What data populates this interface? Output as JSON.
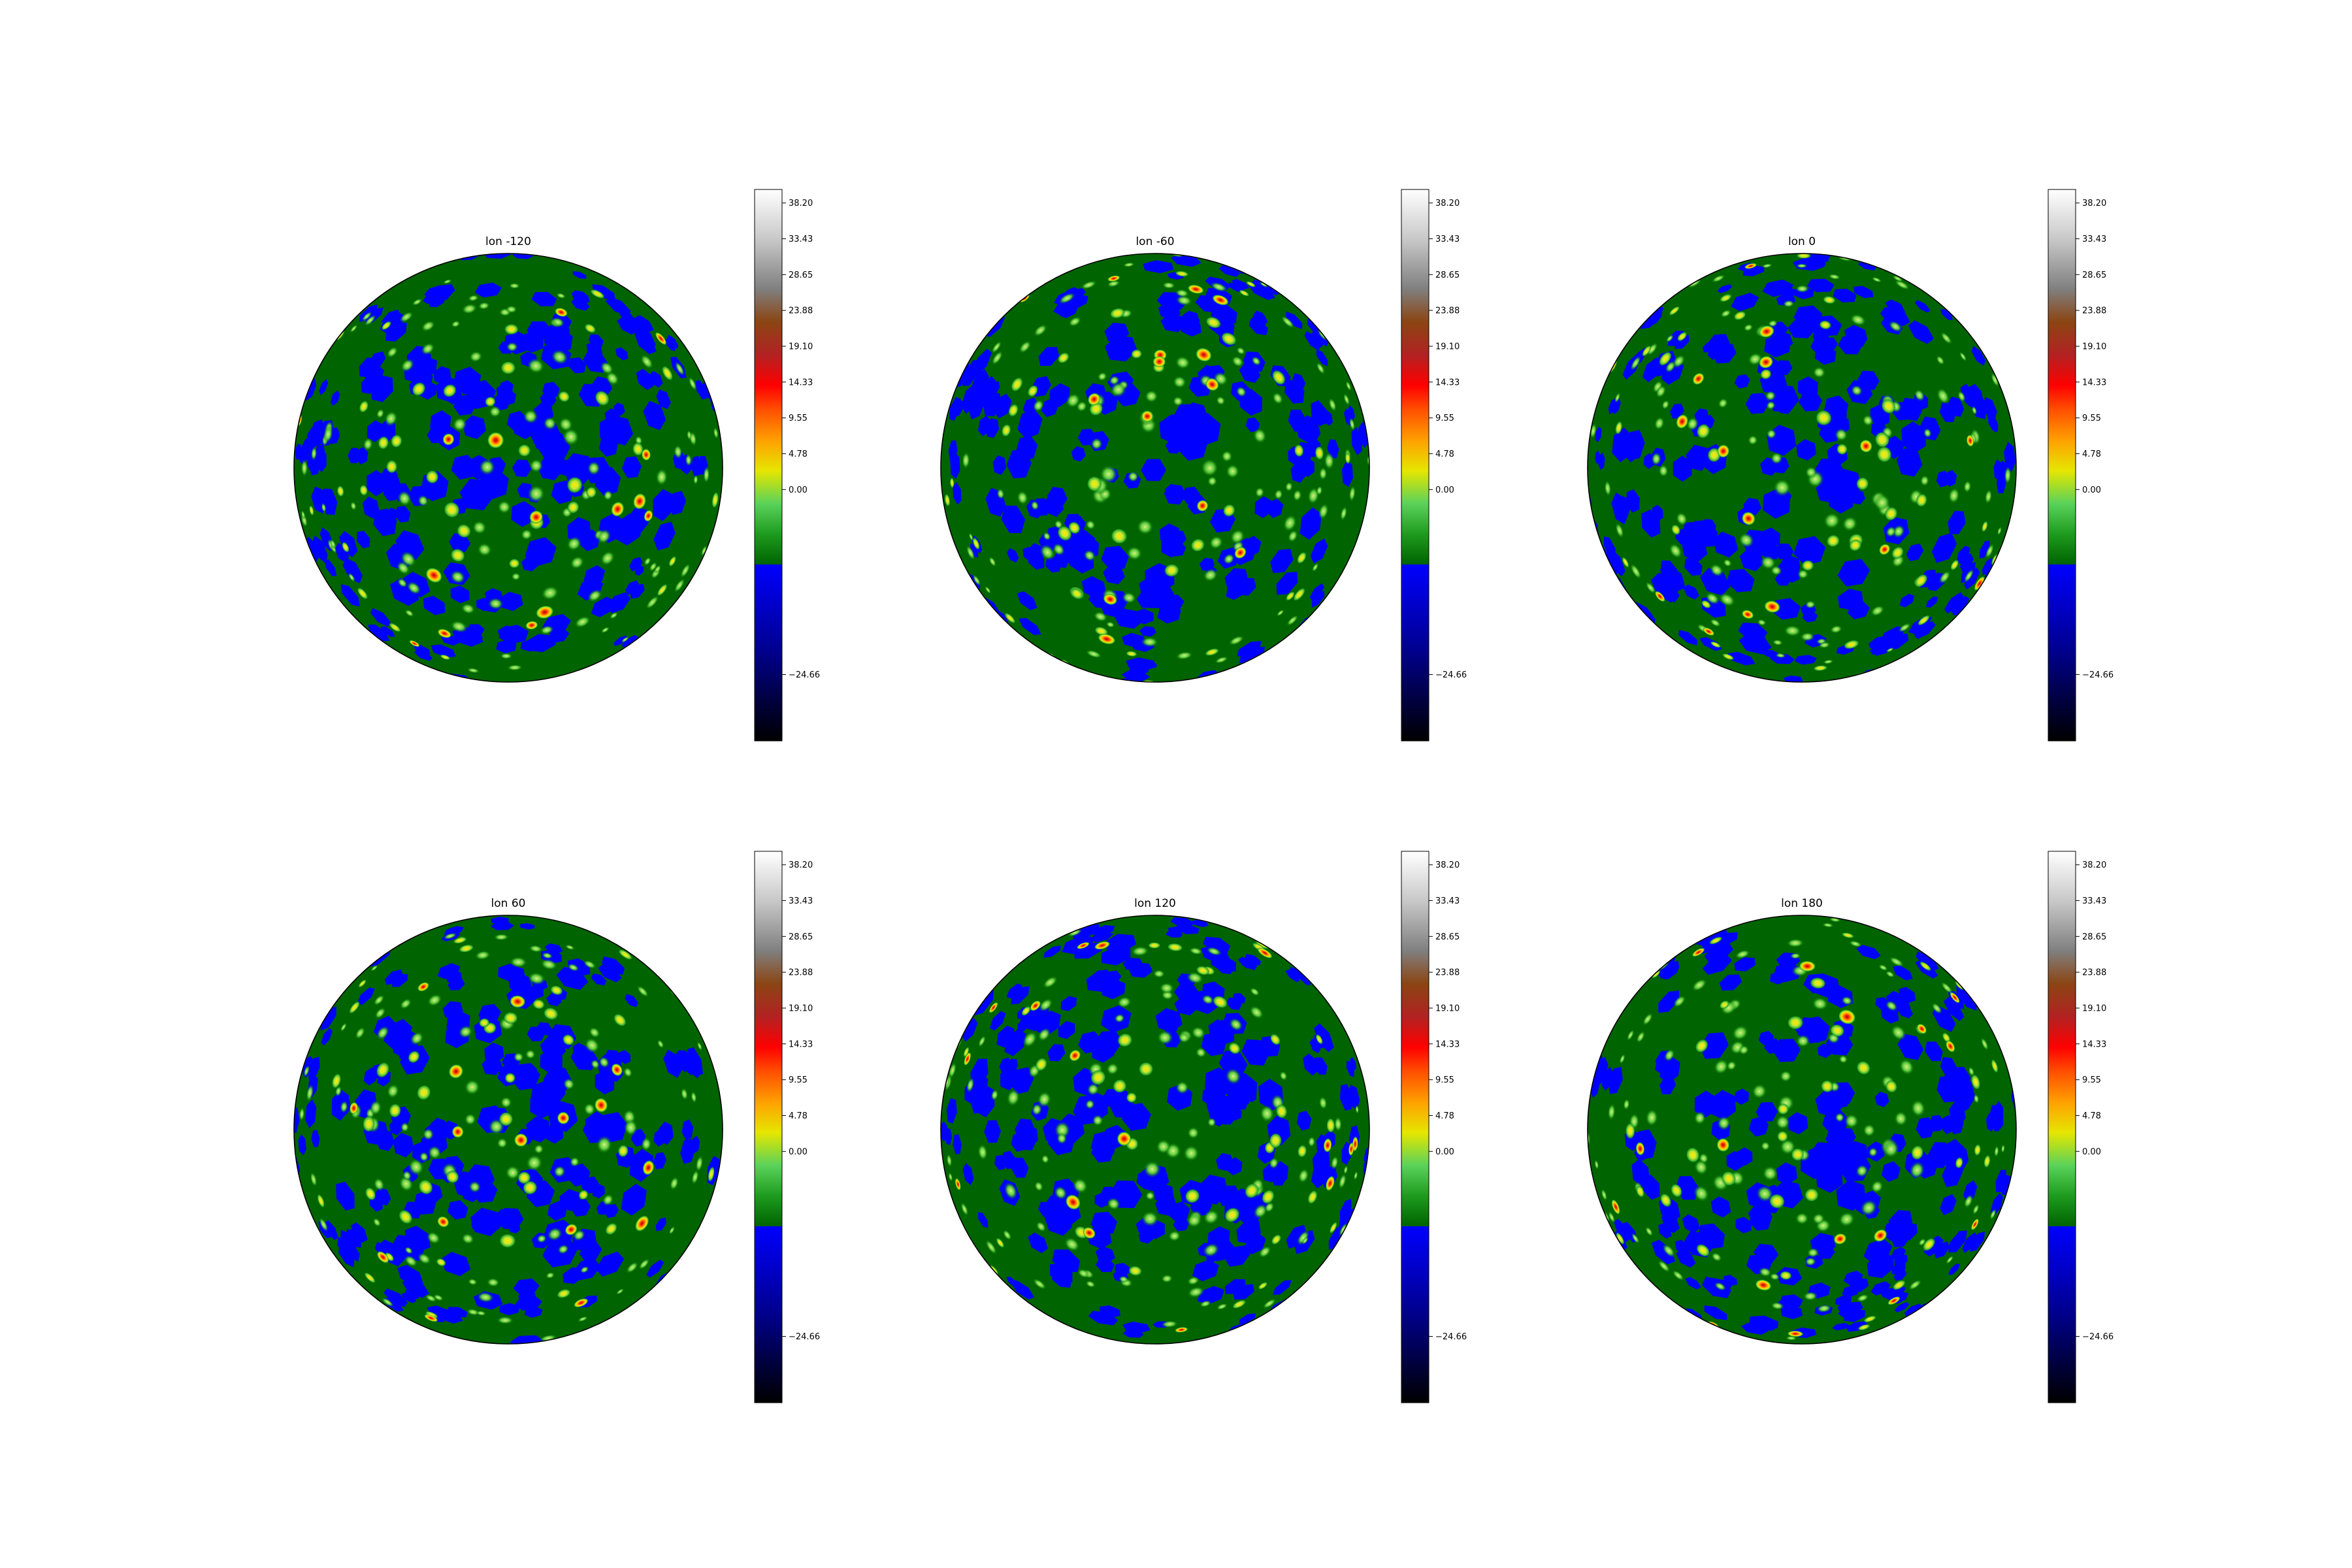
{
  "chart_data": {
    "type": "heatmap",
    "projection": "orthographic",
    "layout": "2 rows x 3 columns",
    "colormap": "blue-black for negative values; green, yellow, orange, red, brown, grey, white for positive values",
    "colorbar": {
      "vmin": -33.5,
      "vmax": 40.0,
      "ticks": [
        38.2,
        33.43,
        28.65,
        23.88,
        19.1,
        14.33,
        9.55,
        4.78,
        0.0,
        -24.66
      ],
      "tick_labels": [
        "38.20",
        "33.43",
        "28.65",
        "23.88",
        "19.10",
        "14.33",
        "9.55",
        "4.78",
        "0.00",
        "−24.66"
      ]
    },
    "panels": [
      {
        "title": "lon -120",
        "central_longitude": -120
      },
      {
        "title": "lon -60",
        "central_longitude": -60
      },
      {
        "title": "lon 0",
        "central_longitude": 0
      },
      {
        "title": "lon 60",
        "central_longitude": 60
      },
      {
        "title": "lon 120",
        "central_longitude": 120
      },
      {
        "title": "lon 180",
        "central_longitude": 180
      }
    ]
  },
  "colors": {
    "green_base": "#006400",
    "negative_blue": "#0000ff",
    "outline": "#000000",
    "background": "#ffffff"
  }
}
